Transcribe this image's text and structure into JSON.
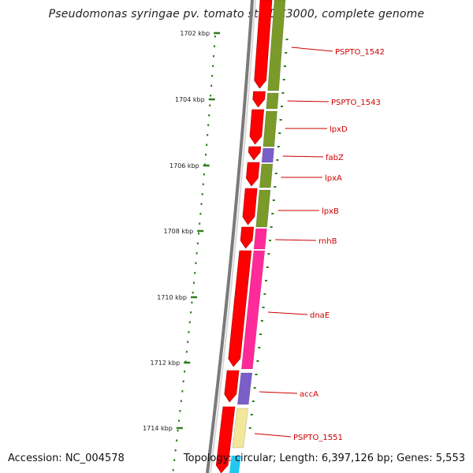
{
  "header": {
    "title": "Pseudomonas syringae pv. tomato str. DC3000, complete genome"
  },
  "footer": {
    "accession": "Accession: NC_004578",
    "summary": "Topology: circular; Length: 6,397,126 bp; Genes: 5,553"
  },
  "scale": {
    "ticks": [
      "1702 kbp",
      "1704 kbp",
      "1706 kbp",
      "1708 kbp",
      "1710 kbp",
      "1712 kbp",
      "1714 kbp"
    ]
  },
  "genes": [
    {
      "label": "PSPTO_1542",
      "color": "#7a9a2a"
    },
    {
      "label": "PSPTO_1543",
      "color": "#7a9a2a"
    },
    {
      "label": "lpxD",
      "color": "#7a9a2a"
    },
    {
      "label": "fabZ",
      "color": "#7a5fc8"
    },
    {
      "label": "lpxA",
      "color": "#7a9a2a"
    },
    {
      "label": "lpxB",
      "color": "#7a9a2a"
    },
    {
      "label": "rnhB",
      "color": "#ff2a9a"
    },
    {
      "label": "dnaE",
      "color": "#ff2a9a"
    },
    {
      "label": "accA",
      "color": "#7a5fc8"
    },
    {
      "label": "PSPTO_1551",
      "color": "#f2e79a"
    }
  ],
  "colors": {
    "strand_red": "#ff0000",
    "backbone": "#7a7a7a",
    "tick_green": "#2e7d1e",
    "label_red": "#cc0000",
    "cyan": "#22c8f0"
  }
}
